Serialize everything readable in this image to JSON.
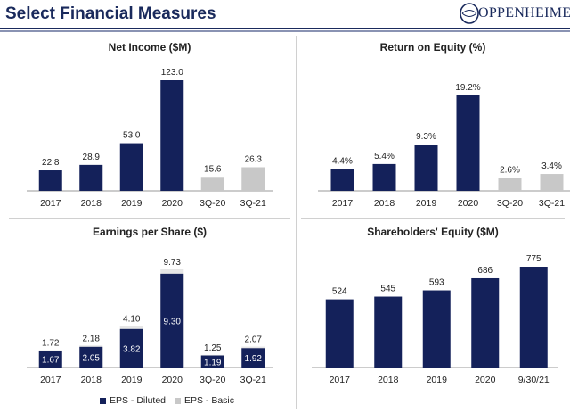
{
  "header": {
    "title": "Select Financial Measures",
    "logo_text": "OPPENHEIMER"
  },
  "colors": {
    "navy": "#14215a",
    "gray": "#c8c8c8",
    "light": "#e6e6e6"
  },
  "chart_data": [
    {
      "id": "net_income",
      "type": "bar",
      "title": "Net Income ($M)",
      "categories": [
        "2017",
        "2018",
        "2019",
        "2020",
        "3Q-20",
        "3Q-21"
      ],
      "values": [
        22.8,
        28.9,
        53.0,
        123.0,
        15.6,
        26.3
      ],
      "labels": [
        "22.8",
        "28.9",
        "53.0",
        "123.0",
        "15.6",
        "26.3"
      ],
      "bar_colors": [
        "navy",
        "navy",
        "navy",
        "navy",
        "gray",
        "gray"
      ],
      "ylim": [
        0,
        123
      ]
    },
    {
      "id": "roe",
      "type": "bar",
      "title": "Return on Equity (%)",
      "categories": [
        "2017",
        "2018",
        "2019",
        "2020",
        "3Q-20",
        "3Q-21"
      ],
      "values": [
        4.4,
        5.4,
        9.3,
        19.2,
        2.6,
        3.4
      ],
      "labels": [
        "4.4%",
        "5.4%",
        "9.3%",
        "19.2%",
        "2.6%",
        "3.4%"
      ],
      "bar_colors": [
        "navy",
        "navy",
        "navy",
        "navy",
        "gray",
        "gray"
      ],
      "ylim": [
        0,
        19.2
      ]
    },
    {
      "id": "eps",
      "type": "bar",
      "title": "Earnings per Share ($)",
      "categories": [
        "2017",
        "2018",
        "2019",
        "2020",
        "3Q-20",
        "3Q-21"
      ],
      "series": [
        {
          "name": "EPS - Diluted",
          "values": [
            1.67,
            2.05,
            3.82,
            9.3,
            1.19,
            1.92
          ],
          "labels": [
            "1.67",
            "2.05",
            "3.82",
            "9.30",
            "1.19",
            "1.92"
          ]
        },
        {
          "name": "EPS - Basic",
          "values": [
            1.72,
            2.18,
            4.1,
            9.73,
            1.25,
            2.07
          ],
          "labels": [
            "1.72",
            "2.18",
            "4.10",
            "9.73",
            "1.25",
            "2.07"
          ]
        }
      ],
      "ylim": [
        0,
        9.73
      ]
    },
    {
      "id": "equity",
      "type": "bar",
      "title": "Shareholders' Equity ($M)",
      "categories": [
        "2017",
        "2018",
        "2019",
        "2020",
        "9/30/21"
      ],
      "values": [
        524,
        545,
        593,
        686,
        775
      ],
      "labels": [
        "524",
        "545",
        "593",
        "686",
        "775"
      ],
      "bar_colors": [
        "navy",
        "navy",
        "navy",
        "navy",
        "navy"
      ],
      "ylim": [
        0,
        775
      ]
    }
  ],
  "legend": {
    "diluted": "EPS - Diluted",
    "basic": "EPS - Basic"
  }
}
